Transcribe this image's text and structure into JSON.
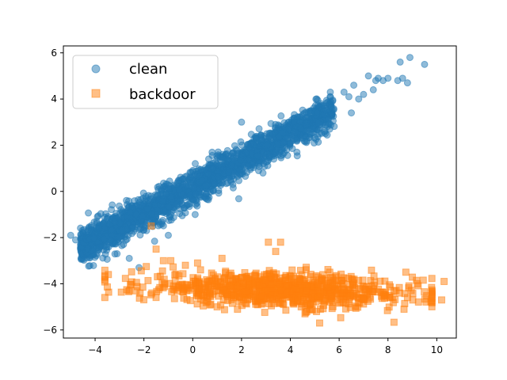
{
  "chart_data": {
    "type": "scatter",
    "title": "",
    "xlabel": "",
    "ylabel": "",
    "xlim": [
      -5.3,
      10.8
    ],
    "ylim": [
      -6.35,
      6.3
    ],
    "xticks": [
      -4,
      -2,
      0,
      2,
      4,
      6,
      8,
      10
    ],
    "yticks": [
      -6,
      -4,
      -2,
      0,
      2,
      4,
      6
    ],
    "grid": false,
    "legend": "upper-left",
    "series": [
      {
        "name": "clean",
        "marker": "circle",
        "color": "#1f77b4",
        "alpha": 0.5,
        "cluster": {
          "count": 2200,
          "x_range": [
            -4.6,
            5.8
          ],
          "line": {
            "slope": 0.57,
            "intercept": 0.2
          },
          "spread_y": 0.38
        },
        "outliers": [
          {
            "x": -5.0,
            "y": -1.9
          },
          {
            "x": -4.8,
            "y": -2.1
          },
          {
            "x": -3.1,
            "y": -2.7
          },
          {
            "x": -2.6,
            "y": -2.9
          },
          {
            "x": -2.2,
            "y": -3.3
          },
          {
            "x": -1.0,
            "y": -1.9
          },
          {
            "x": 0.1,
            "y": -1.0
          },
          {
            "x": 2.0,
            "y": 3.0
          },
          {
            "x": 4.0,
            "y": 2.1
          },
          {
            "x": 4.2,
            "y": 2.3
          },
          {
            "x": 6.2,
            "y": 4.3
          },
          {
            "x": 6.4,
            "y": 4.1
          },
          {
            "x": 6.6,
            "y": 4.6
          },
          {
            "x": 6.5,
            "y": 3.4
          },
          {
            "x": 6.8,
            "y": 4.0
          },
          {
            "x": 7.0,
            "y": 4.2
          },
          {
            "x": 7.2,
            "y": 5.0
          },
          {
            "x": 7.4,
            "y": 4.4
          },
          {
            "x": 7.6,
            "y": 4.9
          },
          {
            "x": 7.8,
            "y": 4.8
          },
          {
            "x": 8.0,
            "y": 4.9
          },
          {
            "x": 7.5,
            "y": 4.8
          },
          {
            "x": 8.4,
            "y": 4.8
          },
          {
            "x": 8.6,
            "y": 4.9
          },
          {
            "x": 8.5,
            "y": 5.6
          },
          {
            "x": 8.9,
            "y": 5.8
          },
          {
            "x": 8.8,
            "y": 4.7
          },
          {
            "x": 9.5,
            "y": 5.5
          }
        ]
      },
      {
        "name": "backdoor",
        "marker": "square",
        "color": "#ff7f0e",
        "alpha": 0.5,
        "cluster": {
          "count": 900,
          "x_range": [
            -3.6,
            9.8
          ],
          "center_y": -4.3,
          "slope": -0.04,
          "spread_y": 0.35
        },
        "outliers": [
          {
            "x": -1.7,
            "y": -1.5
          },
          {
            "x": -1.5,
            "y": -2.5
          },
          {
            "x": -1.2,
            "y": -3.0
          },
          {
            "x": -0.9,
            "y": -3.0
          },
          {
            "x": -0.3,
            "y": -3.2
          },
          {
            "x": 0.2,
            "y": -3.1
          },
          {
            "x": 1.2,
            "y": -2.9
          },
          {
            "x": 3.1,
            "y": -2.2
          },
          {
            "x": 3.6,
            "y": -2.2
          },
          {
            "x": 3.4,
            "y": -2.6
          },
          {
            "x": 10.3,
            "y": -3.9
          },
          {
            "x": 10.2,
            "y": -4.7
          },
          {
            "x": 5.2,
            "y": -5.7
          },
          {
            "x": 4.6,
            "y": -5.3
          },
          {
            "x": 1.0,
            "y": -5.0
          },
          {
            "x": 8.8,
            "y": -4.6
          },
          {
            "x": 9.2,
            "y": -4.0
          },
          {
            "x": -2.6,
            "y": -4.3
          }
        ]
      }
    ]
  }
}
